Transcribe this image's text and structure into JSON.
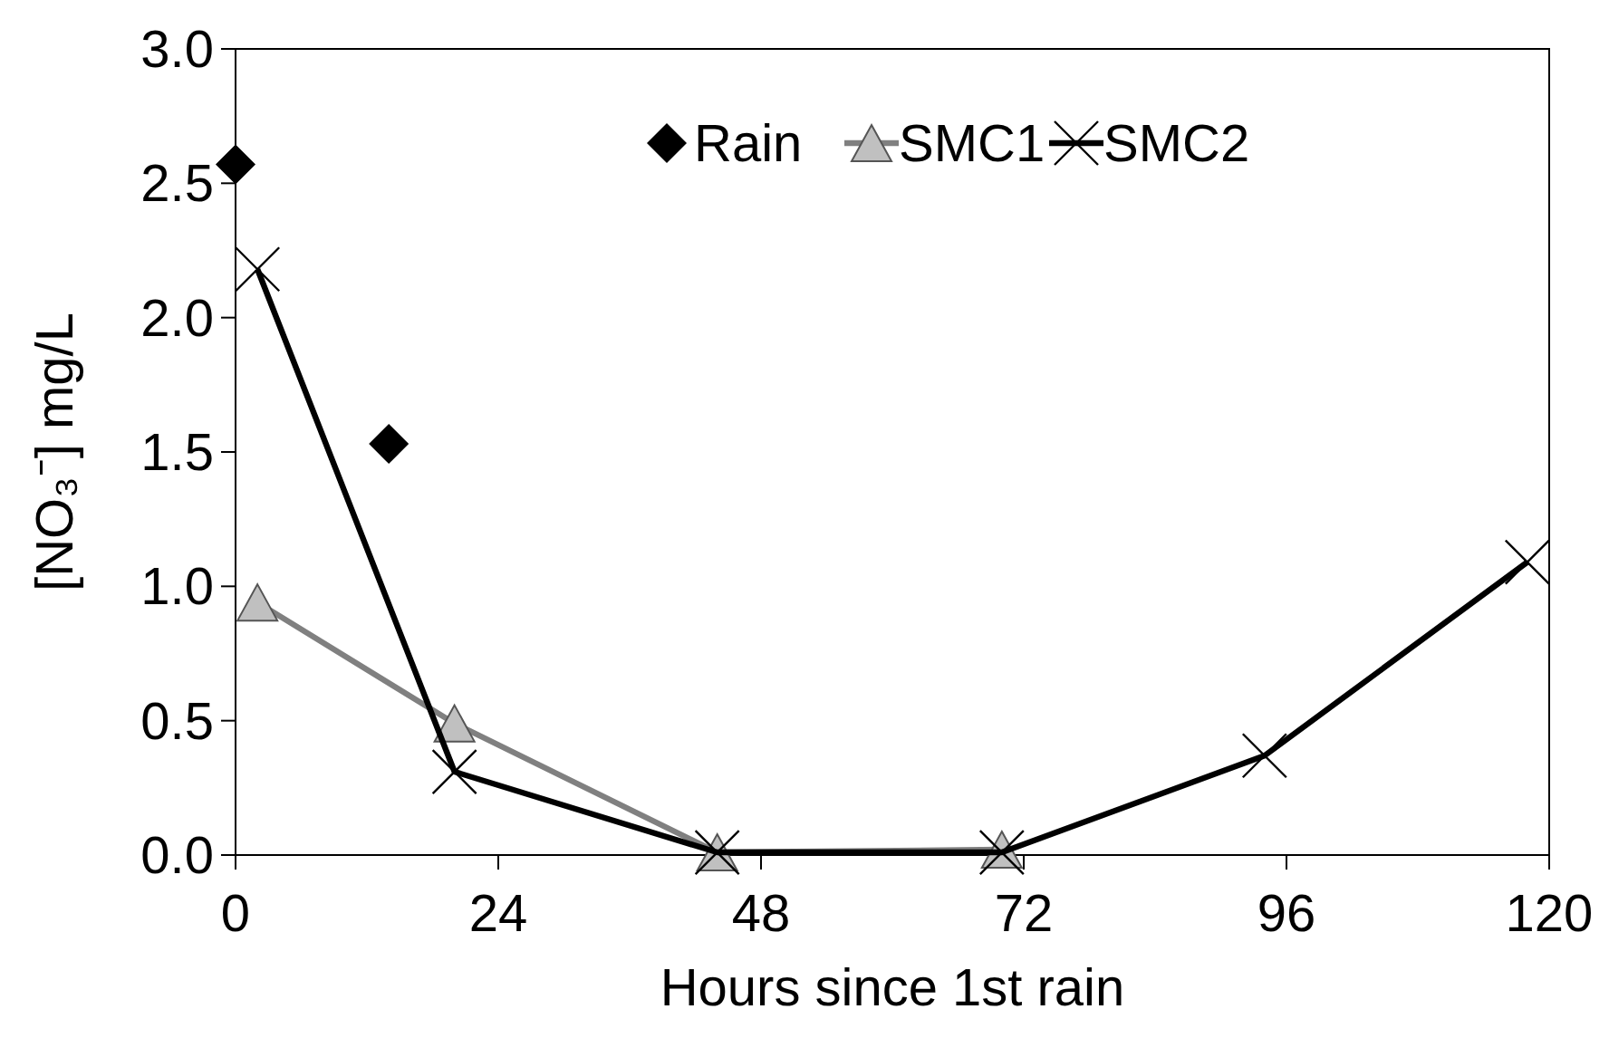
{
  "chart_data": {
    "type": "line",
    "xlabel": "Hours since 1st rain",
    "ylabel": "[NO₃⁻] mg/L",
    "xlim": [
      0,
      120
    ],
    "xticks": [
      0,
      24,
      48,
      72,
      96,
      120
    ],
    "ylim": [
      0,
      3
    ],
    "yticks": [
      {
        "value": 0,
        "label": "0.0"
      },
      {
        "value": 0.5,
        "label": "0.5"
      },
      {
        "value": 1,
        "label": "1.0"
      },
      {
        "value": 1.5,
        "label": "1.5"
      },
      {
        "value": 2,
        "label": "2.0"
      },
      {
        "value": 2.5,
        "label": "2.5"
      },
      {
        "value": 3,
        "label": "3.0"
      }
    ],
    "grid": false,
    "legend": "top",
    "series": [
      {
        "name": "Rain",
        "type": "scatter",
        "marker": "diamond",
        "color": "#000000",
        "x": [
          0,
          14
        ],
        "values": [
          2.57,
          1.53
        ]
      },
      {
        "name": "SMC1",
        "marker": "triangle",
        "color": "#808080",
        "x": [
          2,
          20,
          44,
          70
        ],
        "values": [
          0.94,
          0.49,
          0.01,
          0.02
        ]
      },
      {
        "name": "SMC2",
        "marker": "cross",
        "color": "#000000",
        "x": [
          2,
          20,
          44,
          70,
          94,
          118
        ],
        "values": [
          2.18,
          0.31,
          0.01,
          0.01,
          0.37,
          1.09
        ]
      }
    ]
  }
}
